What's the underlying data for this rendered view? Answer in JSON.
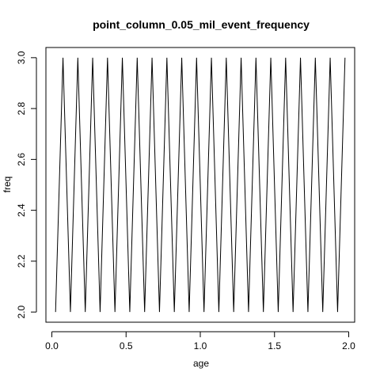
{
  "chart_data": {
    "type": "line",
    "title": "point_column_0.05_mil_event_frequency",
    "xlabel": "age",
    "ylabel": "freq",
    "xlim": [
      -0.04,
      2.04
    ],
    "ylim": [
      1.96,
      3.04
    ],
    "x_ticks": [
      0.0,
      0.5,
      1.0,
      1.5,
      2.0
    ],
    "x_tick_labels": [
      "0.0",
      "0.5",
      "1.0",
      "1.5",
      "2.0"
    ],
    "y_ticks": [
      2.0,
      2.2,
      2.4,
      2.6,
      2.8,
      3.0
    ],
    "y_tick_labels": [
      "2.0",
      "2.2",
      "2.4",
      "2.6",
      "2.8",
      "3.0"
    ],
    "grid": false,
    "line_color": "#000000",
    "x": [
      0.025,
      0.075,
      0.125,
      0.175,
      0.225,
      0.275,
      0.325,
      0.375,
      0.425,
      0.475,
      0.525,
      0.575,
      0.625,
      0.675,
      0.725,
      0.775,
      0.825,
      0.875,
      0.925,
      0.975,
      1.025,
      1.075,
      1.125,
      1.175,
      1.225,
      1.275,
      1.325,
      1.375,
      1.425,
      1.475,
      1.525,
      1.575,
      1.625,
      1.675,
      1.725,
      1.775,
      1.825,
      1.875,
      1.925,
      1.975
    ],
    "y": [
      2,
      3,
      2,
      3,
      2,
      3,
      2,
      3,
      2,
      3,
      2,
      3,
      2,
      3,
      2,
      3,
      2,
      3,
      2,
      3,
      2,
      3,
      2,
      3,
      2,
      3,
      2,
      3,
      2,
      3,
      2,
      3,
      2,
      3,
      2,
      3,
      2,
      3,
      2,
      3
    ]
  }
}
